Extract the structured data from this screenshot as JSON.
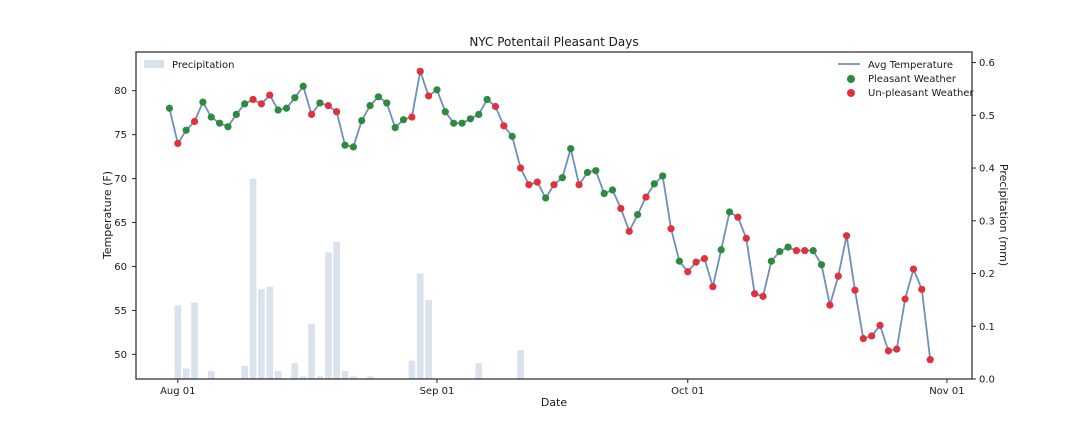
{
  "chart_data": {
    "type": "line",
    "title": "NYC Potentail Pleasant Days",
    "xlabel": "Date",
    "ylabel": "Temperature (F)",
    "y2label": "Precipitation (mm)",
    "start_date": "2016-07-31",
    "xlim": [
      "2016-07-27",
      "2016-11-04"
    ],
    "ylim": [
      47.2,
      84.4
    ],
    "y2lim": [
      0.0,
      0.62
    ],
    "grid": false,
    "x_ticks": [
      {
        "date": "2016-08-01",
        "label": "Aug 01"
      },
      {
        "date": "2016-09-01",
        "label": "Sep 01"
      },
      {
        "date": "2016-10-01",
        "label": "Oct 01"
      },
      {
        "date": "2016-11-01",
        "label": "Nov 01"
      }
    ],
    "y_ticks": [
      50,
      55,
      60,
      65,
      70,
      75,
      80
    ],
    "y2_ticks": [
      "0.0",
      "0.1",
      "0.2",
      "0.3",
      "0.4",
      "0.5",
      "0.6"
    ],
    "temperature_series": {
      "name": "Avg Temperature",
      "color": "#6d8fbf",
      "values": [
        78.0,
        74.0,
        75.5,
        76.5,
        78.7,
        77.0,
        76.3,
        75.9,
        77.3,
        78.5,
        79.0,
        78.5,
        79.5,
        77.8,
        78.0,
        79.2,
        80.5,
        77.3,
        78.6,
        78.3,
        77.6,
        73.8,
        73.6,
        76.6,
        78.3,
        79.3,
        78.6,
        75.8,
        76.7,
        77.0,
        82.2,
        79.4,
        80.1,
        77.6,
        76.3,
        76.3,
        76.8,
        77.3,
        79.0,
        78.2,
        76.0,
        74.8,
        71.2,
        69.3,
        69.6,
        67.8,
        69.3,
        70.1,
        73.4,
        69.3,
        70.7,
        70.9,
        68.3,
        68.7,
        66.6,
        64.0,
        65.9,
        67.9,
        69.4,
        70.3,
        64.3,
        60.6,
        59.4,
        60.5,
        60.9,
        57.7,
        61.9,
        66.2,
        65.6,
        63.2,
        56.9,
        56.6,
        60.6,
        61.7,
        62.2,
        61.8,
        61.8,
        61.8,
        60.2,
        55.6,
        58.9,
        63.5,
        57.3,
        51.8,
        52.1,
        53.3,
        50.4,
        50.6,
        56.3,
        59.7,
        57.4,
        49.4
      ]
    },
    "pleasant_flags": [
      1,
      0,
      1,
      0,
      1,
      1,
      1,
      1,
      1,
      1,
      0,
      0,
      0,
      1,
      1,
      1,
      1,
      0,
      1,
      0,
      0,
      1,
      1,
      1,
      1,
      1,
      1,
      1,
      1,
      0,
      0,
      0,
      1,
      1,
      1,
      1,
      1,
      1,
      1,
      0,
      0,
      1,
      0,
      0,
      0,
      1,
      0,
      1,
      1,
      0,
      1,
      1,
      1,
      1,
      0,
      0,
      1,
      0,
      1,
      1,
      0,
      1,
      0,
      0,
      0,
      0,
      1,
      1,
      0,
      0,
      0,
      0,
      1,
      1,
      1,
      0,
      0,
      1,
      1,
      0,
      0,
      0,
      0,
      0,
      0,
      0,
      0,
      0,
      0,
      0,
      0,
      0
    ],
    "pleasant_series": {
      "name": "Pleasant Weather",
      "color": "#2d8a3e"
    },
    "unpleasant_series": {
      "name": "Un-pleasant Weather",
      "color": "#e0323c"
    },
    "precipitation_series": {
      "name": "Precipitation",
      "color": "#dae2ee",
      "values": [
        0.0,
        0.14,
        0.02,
        0.145,
        0.0,
        0.015,
        0.0,
        0.0,
        0.0,
        0.025,
        0.38,
        0.17,
        0.175,
        0.015,
        0.0,
        0.03,
        0.005,
        0.105,
        0.005,
        0.24,
        0.26,
        0.015,
        0.005,
        0.0,
        0.005,
        0.0,
        0.0,
        0.0,
        0.0,
        0.035,
        0.2,
        0.15,
        0.0,
        0.0,
        0.0,
        0.0,
        0.0,
        0.03,
        0.0,
        0.0,
        0.0,
        0.0,
        0.055,
        0.0,
        0.0,
        0.0,
        0.0,
        0.0,
        0.0,
        0.0,
        0.0,
        0.0,
        0.0,
        0.0,
        0.0,
        0.0,
        0.0,
        0.0,
        0.0,
        0.0,
        0.0,
        0.0,
        0.0,
        0.0,
        0.0,
        0.0,
        0.0,
        0.0,
        0.0,
        0.0,
        0.0,
        0.0,
        0.0,
        0.0,
        0.0,
        0.0,
        0.0,
        0.0,
        0.0,
        0.0,
        0.0,
        0.0,
        0.0,
        0.0,
        0.0,
        0.0,
        0.0,
        0.0,
        0.0,
        0.0,
        0.0,
        0.0,
        0.0,
        0.0
      ]
    },
    "legend_left": {
      "position": "upper-left",
      "entries": [
        "Precipitation"
      ]
    },
    "legend_right": {
      "position": "upper-right",
      "entries": [
        "Avg Temperature",
        "Pleasant Weather",
        "Un-pleasant Weather"
      ]
    }
  }
}
